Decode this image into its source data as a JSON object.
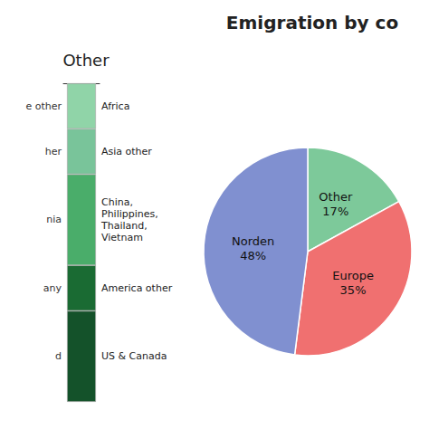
{
  "chart_data": [
    {
      "type": "bar",
      "title": "Other",
      "stacked": true,
      "tick_labels": false,
      "categories": [
        null
      ],
      "ylim": [
        0,
        7
      ],
      "series": [
        {
          "name": "Africa",
          "color": "#90d4a8",
          "values": [
            1
          ]
        },
        {
          "name": "Asia other",
          "color": "#79c49a",
          "values": [
            1
          ]
        },
        {
          "name": "China,\nPhilippines,\nThailand,\nVietnam",
          "color": "#4aad6a",
          "values": [
            2
          ]
        },
        {
          "name": "America other",
          "color": "#1a6b33",
          "values": [
            1
          ]
        },
        {
          "name": "US & Canada",
          "color": "#14522a",
          "values": [
            2
          ]
        }
      ],
      "annotations": [
        "e other",
        "her",
        "nia",
        "any",
        "d"
      ]
    },
    {
      "type": "pie",
      "title": "Emigration by co",
      "categories": [
        "Other",
        "Europe",
        "Norden"
      ],
      "values": [
        17,
        35,
        48
      ],
      "value_labels": [
        "17%",
        "35%",
        "48%"
      ],
      "colors": [
        "#7dc99a",
        "#f07070",
        "#8090d0"
      ]
    }
  ]
}
